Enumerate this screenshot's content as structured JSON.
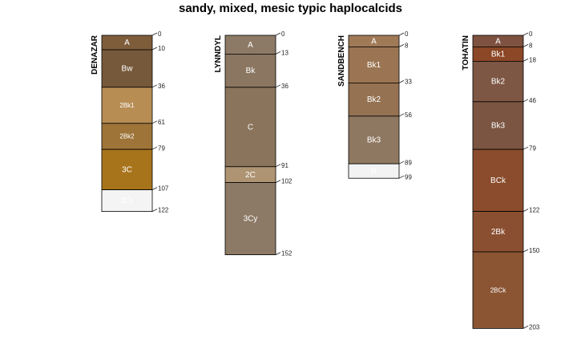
{
  "title": "sandy, mixed, mesic typic haplocalcids",
  "profiles": [
    {
      "name": "DENAZAR",
      "depths": [
        "0",
        "10",
        "36",
        "61",
        "79",
        "107",
        "122"
      ],
      "horizons": [
        {
          "name": "A",
          "top": 0,
          "bottom": 10,
          "color": "#7e5d3b",
          "text": "#ffffff"
        },
        {
          "name": "Bw",
          "top": 10,
          "bottom": 36,
          "color": "#76593a",
          "text": "#ffffff"
        },
        {
          "name": "2Bk1",
          "top": 36,
          "bottom": 61,
          "color": "#b78d54",
          "text": "#3a2a14"
        },
        {
          "name": "2Bk2",
          "top": 61,
          "bottom": 79,
          "color": "#9e7439",
          "text": "#ffffff"
        },
        {
          "name": "3C",
          "top": 79,
          "bottom": 107,
          "color": "#a8741b",
          "text": "#ffffff"
        },
        {
          "name": "3Cr",
          "top": 107,
          "bottom": 122,
          "color": "#f4f4f4",
          "text": "#222222"
        }
      ]
    },
    {
      "name": "LYNNDYL",
      "depths": [
        "0",
        "13",
        "36",
        "91",
        "102",
        "152"
      ],
      "horizons": [
        {
          "name": "A",
          "top": 0,
          "bottom": 13,
          "color": "#8d7a66",
          "text": "#ffffff"
        },
        {
          "name": "Bk",
          "top": 13,
          "bottom": 36,
          "color": "#8a7661",
          "text": "#ffffff"
        },
        {
          "name": "C",
          "top": 36,
          "bottom": 91,
          "color": "#8a745b",
          "text": "#ffffff"
        },
        {
          "name": "2C",
          "top": 91,
          "bottom": 102,
          "color": "#ae9473",
          "text": "#2a2218"
        },
        {
          "name": "3Cy",
          "top": 102,
          "bottom": 152,
          "color": "#8d7a66",
          "text": "#ffffff"
        }
      ]
    },
    {
      "name": "SANDBENCH",
      "depths": [
        "0",
        "8",
        "33",
        "56",
        "89",
        "99"
      ],
      "horizons": [
        {
          "name": "A",
          "top": 0,
          "bottom": 8,
          "color": "#a07a57",
          "text": "#ffffff"
        },
        {
          "name": "Bk1",
          "top": 8,
          "bottom": 33,
          "color": "#9b7553",
          "text": "#ffffff"
        },
        {
          "name": "Bk2",
          "top": 33,
          "bottom": 56,
          "color": "#957252",
          "text": "#ffffff"
        },
        {
          "name": "Bk3",
          "top": 56,
          "bottom": 89,
          "color": "#8f7861",
          "text": "#ffffff"
        },
        {
          "name": "R",
          "top": 89,
          "bottom": 99,
          "color": "#f3f3f3",
          "text": "#222222"
        }
      ]
    },
    {
      "name": "TOHATIN",
      "depths": [
        "0",
        "8",
        "18",
        "46",
        "79",
        "122",
        "150",
        "203"
      ],
      "horizons": [
        {
          "name": "A",
          "top": 0,
          "bottom": 8,
          "color": "#7e5240",
          "text": "#ffffff"
        },
        {
          "name": "Bk1",
          "top": 8,
          "bottom": 18,
          "color": "#8b4726",
          "text": "#ffffff"
        },
        {
          "name": "Bk2",
          "top": 18,
          "bottom": 46,
          "color": "#7d5744",
          "text": "#ffffff"
        },
        {
          "name": "Bk3",
          "top": 46,
          "bottom": 79,
          "color": "#7b5442",
          "text": "#ffffff"
        },
        {
          "name": "BCk",
          "top": 79,
          "bottom": 122,
          "color": "#8a4c2c",
          "text": "#ffffff"
        },
        {
          "name": "2Bk",
          "top": 122,
          "bottom": 150,
          "color": "#8a4f30",
          "text": "#ffffff"
        },
        {
          "name": "2BCk",
          "top": 150,
          "bottom": 203,
          "color": "#8b5533",
          "text": "#ffffff"
        }
      ]
    }
  ]
}
